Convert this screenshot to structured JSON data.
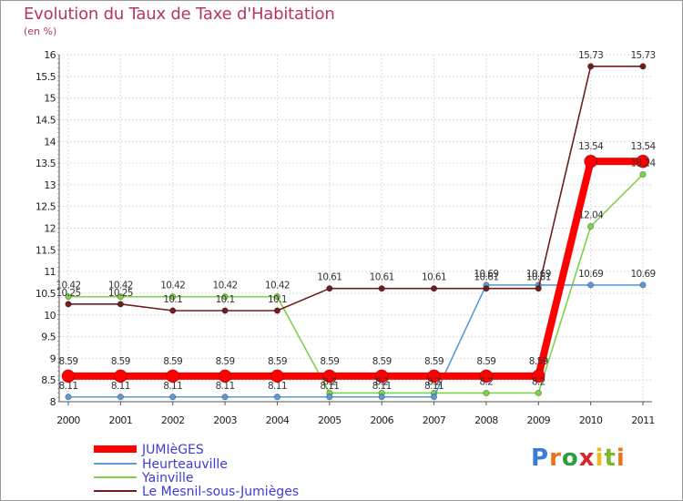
{
  "title": "Evolution du Taux de Taxe d'Habitation",
  "subtitle": "(en %)",
  "logo": {
    "letters": [
      "P",
      "r",
      "o",
      "x",
      "i",
      "t",
      "i"
    ],
    "colors": [
      "#3a7bd5",
      "#e8731a",
      "#2e9e3e",
      "#d8262a",
      "#f0b81c",
      "#7ab82e",
      "#e8731a"
    ]
  },
  "chart_data": {
    "type": "line",
    "x": [
      "2000",
      "2001",
      "2002",
      "2003",
      "2004",
      "2005",
      "2006",
      "2007",
      "2008",
      "2009",
      "2010",
      "2011"
    ],
    "ylim": [
      8,
      16
    ],
    "yticks": [
      "8",
      "8.5",
      "9",
      "9.5",
      "10",
      "10.5",
      "11",
      "11.5",
      "12",
      "12.5",
      "13",
      "13.5",
      "14",
      "14.5",
      "15",
      "15.5",
      "16"
    ],
    "grid": true,
    "legend_placement": "bottom-left",
    "series": [
      {
        "name": "JUMIèGES",
        "color": "#ff0000",
        "values": [
          8.59,
          8.59,
          8.59,
          8.59,
          8.59,
          8.59,
          8.59,
          8.59,
          8.59,
          8.59,
          13.54,
          13.54
        ],
        "labels": [
          "8.59",
          "8.59",
          "8.59",
          "8.59",
          "8.59",
          "8.59",
          "8.59",
          "8.59",
          "8.59",
          "8.59",
          "13.54",
          "13.54"
        ]
      },
      {
        "name": "Heurteauville",
        "color": "#5b9bd5",
        "values": [
          8.11,
          8.11,
          8.11,
          8.11,
          8.11,
          8.11,
          8.11,
          8.11,
          10.69,
          10.69,
          10.69,
          10.69
        ],
        "labels": [
          "8.11",
          "8.11",
          "8.11",
          "8.11",
          "8.11",
          "8.11",
          "8.11",
          "8.11",
          "10.69",
          "10.69",
          "10.69",
          "10.69"
        ]
      },
      {
        "name": "Yainville",
        "color": "#7fd14a",
        "values": [
          10.42,
          10.42,
          10.42,
          10.42,
          10.42,
          8.2,
          8.2,
          8.2,
          8.2,
          8.2,
          12.04,
          13.24
        ],
        "labels": [
          "10.42",
          "10.42",
          "10.42",
          "10.42",
          "10.42",
          "8.2",
          "8.2",
          "8.2",
          "8.2",
          "8.2",
          "12.04",
          "13.24"
        ]
      },
      {
        "name": "Le Mesnil-sous-Jumièges",
        "color": "#6e1e1e",
        "values": [
          10.25,
          10.25,
          10.1,
          10.1,
          10.1,
          10.61,
          10.61,
          10.61,
          10.61,
          10.61,
          15.73,
          15.73
        ],
        "labels": [
          "10.25",
          "10.25",
          "10.1",
          "10.1",
          "10.1",
          "10.61",
          "10.61",
          "10.61",
          "10.61",
          "10.61",
          "15.73",
          "15.73"
        ]
      }
    ]
  }
}
